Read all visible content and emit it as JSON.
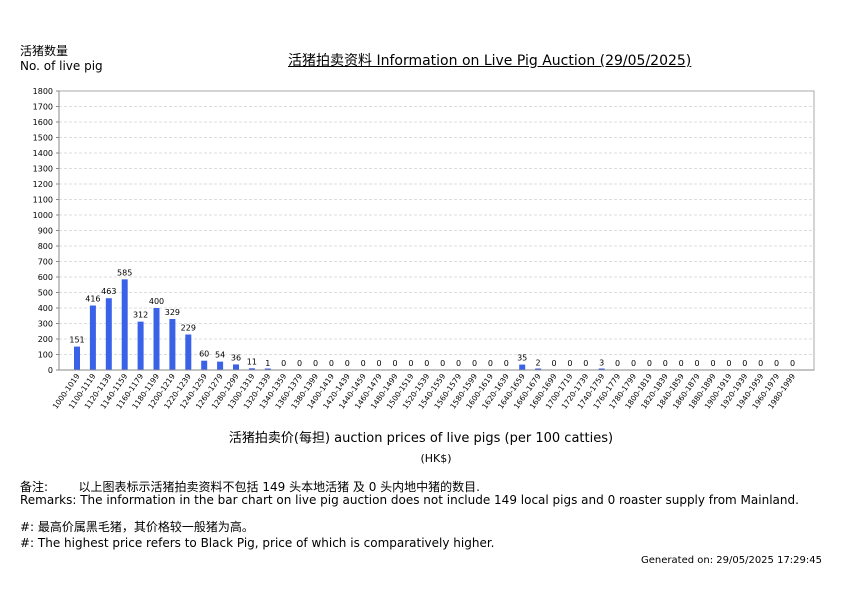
{
  "header": {
    "y_label_cn": "活猪数量",
    "y_label_en": "No. of live pig",
    "title": "活猪拍卖资料 Information on Live Pig Auction (29/05/2025)"
  },
  "chart_data": {
    "type": "bar",
    "title": "活猪拍卖资料 Information on Live Pig Auction (29/05/2025)",
    "xlabel": "活猪拍卖价(每担) auction prices of live pigs (per 100 catties)",
    "xunit": "(HK$)",
    "ylabel": "活猪数量 No. of live pig",
    "ylim": [
      0,
      1800
    ],
    "yticks": [
      0,
      100,
      200,
      300,
      400,
      500,
      600,
      700,
      800,
      900,
      1000,
      1100,
      1200,
      1300,
      1400,
      1500,
      1600,
      1700,
      1800
    ],
    "grid": true,
    "bar_color": "#3a62e8",
    "categories": [
      "1000-1019",
      "1100-1119",
      "1120-1139",
      "1140-1159",
      "1160-1179",
      "1180-1199",
      "1200-1219",
      "1220-1239",
      "1240-1259",
      "1260-1279",
      "1280-1299",
      "1300-1319",
      "1320-1339",
      "1340-1359",
      "1360-1379",
      "1380-1399",
      "1400-1419",
      "1420-1439",
      "1440-1459",
      "1460-1479",
      "1480-1499",
      "1500-1519",
      "1520-1539",
      "1540-1559",
      "1560-1579",
      "1580-1599",
      "1600-1619",
      "1620-1639",
      "1640-1659",
      "1660-1679",
      "1680-1699",
      "1700-1719",
      "1720-1739",
      "1740-1759",
      "1760-1779",
      "1780-1799",
      "1800-1819",
      "1820-1839",
      "1840-1859",
      "1860-1879",
      "1880-1899",
      "1900-1919",
      "1920-1939",
      "1940-1959",
      "1960-1979",
      "1980-1999"
    ],
    "values": [
      151,
      416,
      463,
      585,
      312,
      400,
      329,
      229,
      60,
      54,
      36,
      11,
      1,
      0,
      0,
      0,
      0,
      0,
      0,
      0,
      0,
      0,
      0,
      0,
      0,
      0,
      0,
      0,
      35,
      2,
      0,
      0,
      0,
      3,
      0,
      0,
      0,
      0,
      0,
      0,
      0,
      0,
      0,
      0,
      0,
      0
    ]
  },
  "footer": {
    "xlabel": "活猪拍卖价(每担) auction prices of live pigs (per 100 catties)",
    "xunit": "(HK$)",
    "remarks_cn": "备注:        以上图表标示活猪拍卖资料不包括 149 头本地活猪 及 0 头内地中猪的数目.",
    "remarks_en": "Remarks: The information in the bar chart on live pig auction does not include 149 local pigs and 0 roaster supply from Mainland.",
    "note_cn": "#: 最高价属黑毛猪，其价格较一般猪为高。",
    "note_en": "#: The highest price refers to Black Pig, price of which is comparatively higher.",
    "generated": "Generated on: 29/05/2025 17:29:45"
  }
}
